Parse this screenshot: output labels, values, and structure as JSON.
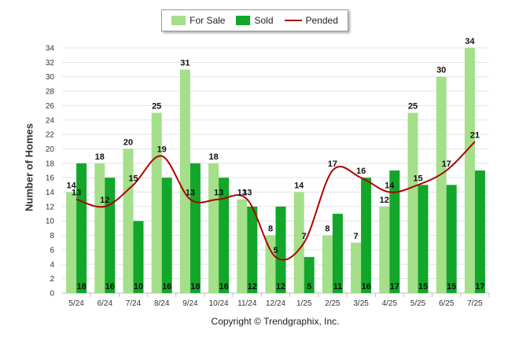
{
  "chart_data": {
    "type": "bar",
    "ylabel": "Number of Homes",
    "ylim": [
      0,
      34
    ],
    "yticks": [
      0,
      2,
      4,
      6,
      8,
      10,
      12,
      14,
      16,
      18,
      20,
      22,
      24,
      26,
      28,
      30,
      32,
      34
    ],
    "grid": true,
    "legend": "top-center",
    "categories": [
      "5/24",
      "6/24",
      "7/24",
      "8/24",
      "9/24",
      "10/24",
      "11/24",
      "12/24",
      "1/25",
      "2/25",
      "3/25",
      "4/25",
      "5/25",
      "6/25",
      "7/25"
    ],
    "series": [
      {
        "name": "For Sale",
        "type": "bar",
        "color": "#a4df8a",
        "values": [
          14,
          18,
          20,
          25,
          31,
          18,
          13,
          8,
          14,
          8,
          7,
          12,
          25,
          30,
          34
        ]
      },
      {
        "name": "Sold",
        "type": "bar",
        "color": "#12a62a",
        "values": [
          18,
          16,
          10,
          16,
          18,
          16,
          12,
          12,
          5,
          11,
          16,
          17,
          15,
          15,
          17
        ]
      },
      {
        "name": "Pended",
        "type": "line",
        "color": "#b00000",
        "values": [
          13,
          12,
          15,
          19,
          13,
          13,
          13,
          5,
          7,
          17,
          16,
          14,
          15,
          17,
          21
        ]
      }
    ]
  },
  "legend": {
    "for_sale": "For Sale",
    "sold": "Sold",
    "pended": "Pended"
  },
  "footer": {
    "copyright": "Copyright © Trendgraphix, Inc."
  }
}
